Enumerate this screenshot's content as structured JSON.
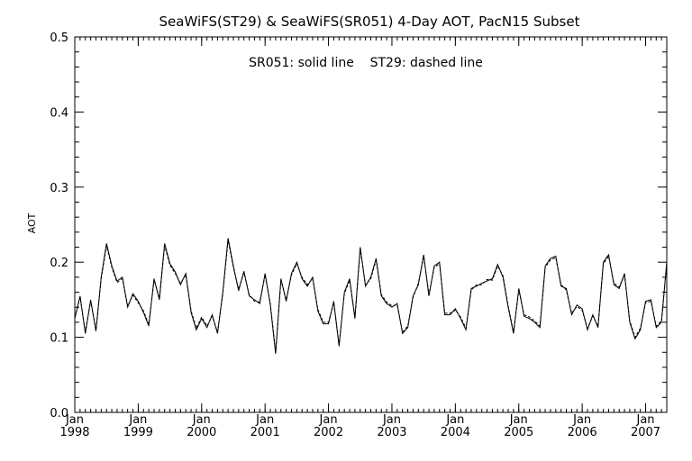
{
  "chart_data": {
    "type": "line",
    "title": "SeaWiFS(ST29) & SeaWiFS(SR051) 4-Day AOT, PacN15 Subset",
    "annotation": "SR051: solid line    ST29: dashed line",
    "xlabel": "",
    "ylabel": "AOT",
    "xlim": [
      "1998-01",
      "2007-05"
    ],
    "ylim": [
      0.0,
      0.5
    ],
    "yticks": [
      "0.0",
      "0.1",
      "0.2",
      "0.3",
      "0.4",
      "0.5"
    ],
    "xticks": [
      {
        "month": "Jan",
        "year": "1998",
        "date": "1998-01"
      },
      {
        "month": "Jan",
        "year": "1999",
        "date": "1999-01"
      },
      {
        "month": "Jan",
        "year": "2000",
        "date": "2000-01"
      },
      {
        "month": "Jan",
        "year": "2001",
        "date": "2001-01"
      },
      {
        "month": "Jan",
        "year": "2002",
        "date": "2002-01"
      },
      {
        "month": "Jan",
        "year": "2003",
        "date": "2003-01"
      },
      {
        "month": "Jan",
        "year": "2004",
        "date": "2004-01"
      },
      {
        "month": "Jan",
        "year": "2005",
        "date": "2005-01"
      },
      {
        "month": "Jan",
        "year": "2006",
        "date": "2006-01"
      },
      {
        "month": "Jan",
        "year": "2007",
        "date": "2007-01"
      }
    ],
    "grid": false,
    "color": "#000000",
    "series": [
      {
        "x": [
          "1998-01",
          "1998-02",
          "1998-03",
          "1998-04",
          "1998-05",
          "1998-06",
          "1998-07",
          "1998-08",
          "1998-09",
          "1998-10",
          "1998-11",
          "1998-12",
          "1999-01",
          "1999-02",
          "1999-03",
          "1999-04",
          "1999-05",
          "1999-06",
          "1999-07",
          "1999-08",
          "1999-09",
          "1999-10",
          "1999-11",
          "1999-12",
          "2000-01",
          "2000-02",
          "2000-03",
          "2000-04",
          "2000-05",
          "2000-06",
          "2000-07",
          "2000-08",
          "2000-09",
          "2000-10",
          "2000-11",
          "2000-12",
          "2001-01",
          "2001-02",
          "2001-03",
          "2001-04",
          "2001-05",
          "2001-06",
          "2001-07",
          "2001-08",
          "2001-09",
          "2001-10",
          "2001-11",
          "2001-12",
          "2002-01",
          "2002-02",
          "2002-03",
          "2002-04",
          "2002-05",
          "2002-06",
          "2002-07",
          "2002-08",
          "2002-09",
          "2002-10",
          "2002-11",
          "2002-12",
          "2003-01",
          "2003-02",
          "2003-03",
          "2003-04",
          "2003-05",
          "2003-06",
          "2003-07",
          "2003-08",
          "2003-09",
          "2003-10",
          "2003-11",
          "2003-12",
          "2004-01",
          "2004-02",
          "2004-03",
          "2004-04",
          "2004-05",
          "2004-06",
          "2004-07",
          "2004-08",
          "2004-09",
          "2004-10",
          "2004-11",
          "2004-12",
          "2005-01",
          "2005-02",
          "2005-03",
          "2005-04",
          "2005-05",
          "2005-06",
          "2005-07",
          "2005-08",
          "2005-09",
          "2005-10",
          "2005-11",
          "2005-12",
          "2006-01",
          "2006-02",
          "2006-03",
          "2006-04",
          "2006-05",
          "2006-06",
          "2006-07",
          "2006-08",
          "2006-09",
          "2006-10",
          "2006-11",
          "2006-12",
          "2007-01",
          "2007-02",
          "2007-03",
          "2007-04",
          "2007-05"
        ],
        "values": [
          0.125,
          0.155,
          0.105,
          0.15,
          0.108,
          0.18,
          0.225,
          0.195,
          0.175,
          0.18,
          0.14,
          0.158,
          0.148,
          0.133,
          0.115,
          0.178,
          0.15,
          0.225,
          0.198,
          0.187,
          0.17,
          0.185,
          0.133,
          0.11,
          0.125,
          0.113,
          0.13,
          0.105,
          0.16,
          0.232,
          0.195,
          0.162,
          0.188,
          0.155,
          0.15,
          0.145,
          0.185,
          0.143,
          0.078,
          0.178,
          0.148,
          0.185,
          0.2,
          0.178,
          0.168,
          0.18,
          0.135,
          0.118,
          0.118,
          0.148,
          0.088,
          0.16,
          0.178,
          0.125,
          0.22,
          0.168,
          0.18,
          0.205,
          0.155,
          0.145,
          0.14,
          0.145,
          0.105,
          0.113,
          0.155,
          0.17,
          0.21,
          0.155,
          0.195,
          0.2,
          0.13,
          0.13,
          0.138,
          0.125,
          0.11,
          0.165,
          0.168,
          0.172,
          0.175,
          0.178,
          0.197,
          0.18,
          0.14,
          0.105,
          0.165,
          0.128,
          0.125,
          0.12,
          0.113,
          0.195,
          0.205,
          0.208,
          0.168,
          0.165,
          0.13,
          0.143,
          0.138,
          0.11,
          0.13,
          0.113,
          0.2,
          0.21,
          0.17,
          0.165,
          0.185,
          0.12,
          0.098,
          0.11,
          0.148,
          0.15,
          0.113,
          0.12,
          0.2
        ]
      },
      {
        "x": [
          "1998-01",
          "1998-02",
          "1998-03",
          "1998-04",
          "1998-05",
          "1998-06",
          "1998-07",
          "1998-08",
          "1998-09",
          "1998-10",
          "1998-11",
          "1998-12",
          "1999-01",
          "1999-02",
          "1999-03",
          "1999-04",
          "1999-05",
          "1999-06",
          "1999-07",
          "1999-08",
          "1999-09",
          "1999-10",
          "1999-11",
          "1999-12",
          "2000-01",
          "2000-02",
          "2000-03",
          "2000-04",
          "2000-05",
          "2000-06",
          "2000-07",
          "2000-08",
          "2000-09",
          "2000-10",
          "2000-11",
          "2000-12",
          "2001-01",
          "2001-02",
          "2001-03",
          "2001-04",
          "2001-05",
          "2001-06",
          "2001-07",
          "2001-08",
          "2001-09",
          "2001-10",
          "2001-11",
          "2001-12",
          "2002-01",
          "2002-02",
          "2002-03",
          "2002-04",
          "2002-05",
          "2002-06",
          "2002-07",
          "2002-08",
          "2002-09",
          "2002-10",
          "2002-11",
          "2002-12",
          "2003-01",
          "2003-02",
          "2003-03",
          "2003-04",
          "2003-05",
          "2003-06",
          "2003-07",
          "2003-08",
          "2003-09",
          "2003-10",
          "2003-11",
          "2003-12",
          "2004-01",
          "2004-02",
          "2004-03",
          "2004-04",
          "2004-05",
          "2004-06",
          "2004-07",
          "2004-08",
          "2004-09",
          "2004-10",
          "2004-11",
          "2004-12",
          "2005-01",
          "2005-02",
          "2005-03",
          "2005-04",
          "2005-05",
          "2005-06",
          "2005-07",
          "2005-08",
          "2005-09",
          "2005-10",
          "2005-11",
          "2005-12",
          "2006-01",
          "2006-02",
          "2006-03",
          "2006-04",
          "2006-05",
          "2006-06",
          "2006-07",
          "2006-08",
          "2006-09",
          "2006-10",
          "2006-11",
          "2006-12",
          "2007-01",
          "2007-02",
          "2007-03",
          "2007-04",
          "2007-05"
        ],
        "values": [
          0.127,
          0.153,
          0.107,
          0.148,
          0.11,
          0.178,
          0.222,
          0.193,
          0.173,
          0.178,
          0.142,
          0.156,
          0.146,
          0.135,
          0.117,
          0.176,
          0.152,
          0.222,
          0.196,
          0.185,
          0.172,
          0.183,
          0.135,
          0.112,
          0.127,
          0.115,
          0.128,
          0.107,
          0.158,
          0.229,
          0.193,
          0.164,
          0.186,
          0.157,
          0.148,
          0.147,
          0.183,
          0.145,
          0.08,
          0.176,
          0.15,
          0.183,
          0.198,
          0.18,
          0.17,
          0.178,
          0.137,
          0.12,
          0.12,
          0.146,
          0.09,
          0.158,
          0.176,
          0.127,
          0.218,
          0.17,
          0.178,
          0.203,
          0.157,
          0.147,
          0.142,
          0.143,
          0.107,
          0.115,
          0.153,
          0.172,
          0.208,
          0.157,
          0.193,
          0.198,
          0.132,
          0.132,
          0.136,
          0.127,
          0.112,
          0.163,
          0.17,
          0.17,
          0.177,
          0.176,
          0.195,
          0.182,
          0.142,
          0.107,
          0.163,
          0.13,
          0.127,
          0.122,
          0.115,
          0.193,
          0.203,
          0.206,
          0.17,
          0.163,
          0.132,
          0.141,
          0.136,
          0.112,
          0.128,
          0.115,
          0.198,
          0.208,
          0.172,
          0.167,
          0.183,
          0.122,
          0.1,
          0.112,
          0.146,
          0.148,
          0.115,
          0.122,
          0.198
        ]
      }
    ]
  }
}
